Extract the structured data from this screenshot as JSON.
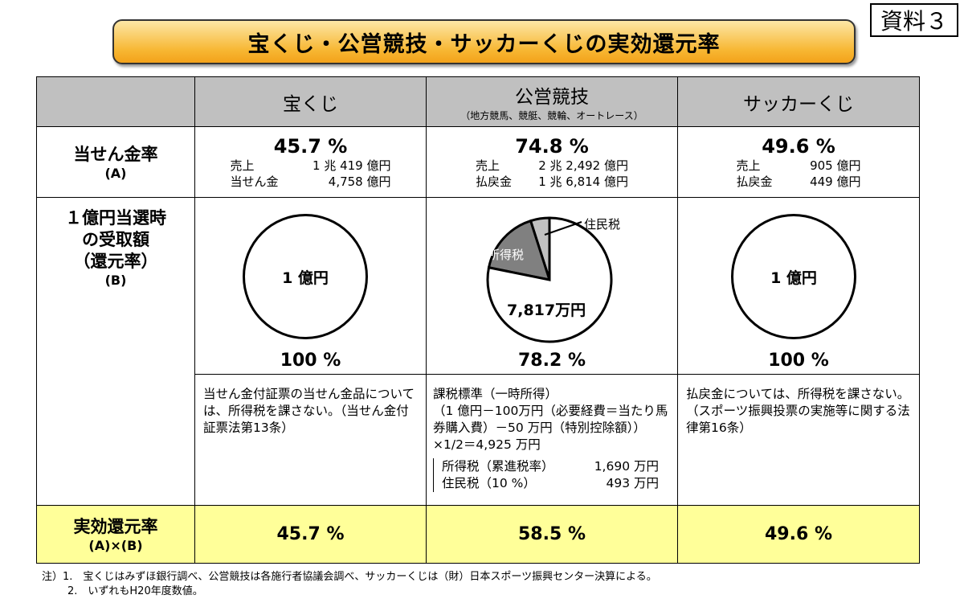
{
  "title": "宝くじ・公営競技・サッカーくじの実効還元率",
  "doc_label": "資料３",
  "columns": [
    {
      "name": "宝くじ",
      "sub": ""
    },
    {
      "name": "公営競技",
      "sub": "（地方競馬、競艇、競輪、オートレース）"
    },
    {
      "name": "サッカーくじ",
      "sub": ""
    }
  ],
  "rows": {
    "payout_label": "当せん金率",
    "payout_sub": "(A)",
    "return_label_1": "１億円当選時",
    "return_label_2": "の受取額",
    "return_label_3": "（還元率）",
    "return_sub": "(B)",
    "effective_label": "実効還元率",
    "effective_sub": "(A)×(B)"
  },
  "takarakuji": {
    "rate": "45.7 %",
    "l1k": "売上",
    "l1v": "1 兆 419 億円",
    "l2k": "当せん金",
    "l2v": "4,758 億円",
    "circle": "1 億円",
    "ret": "100 %",
    "note": "当せん金付証票の当せん金品については、所得税を課さない。（当せん金付証票法第13条）",
    "effective": "45.7 %"
  },
  "keiba": {
    "rate": "74.8 %",
    "l1k": "売上",
    "l1v": "2 兆 2,492 億円",
    "l2k": "払戻金",
    "l2v": "1 兆 6,814 億円",
    "ret": "78.2 %",
    "note_title": "課税標準（一時所得）",
    "note_body": "（1 億円－100万円（必要経費＝当たり馬券購入費）－50 万円（特別控除額））×1/2＝4,925 万円",
    "tax1k": "所得税（累進税率）",
    "tax1v": "1,690 万円",
    "tax2k": "住民税（10 %）",
    "tax2v": "493 万円",
    "effective": "58.5 %"
  },
  "soccer": {
    "rate": "49.6 %",
    "l1k": "売上",
    "l1v": "905 億円",
    "l2k": "払戻金",
    "l2v": "449 億円",
    "circle": "1 億円",
    "ret": "100 %",
    "note": "払戻金については、所得税を課さない。（スポーツ振興投票の実施等に関する法律第16条）",
    "effective": "49.6 %"
  },
  "chart_data": {
    "type": "pie",
    "unit": "万円",
    "slices": [
      {
        "label": "住民税",
        "value": 493,
        "color": "#c0c0c0"
      },
      {
        "label": "所得税",
        "value": 1690,
        "color": "#808080"
      },
      {
        "label": "7,817万円",
        "value": 7817,
        "color": "#ffffff"
      }
    ]
  },
  "footnotes": [
    "注）1.　宝くじはみずほ銀行調べ、公営競技は各施行者協議会調べ、サッカーくじは（財）日本スポーツ振興センター決算による。",
    "2.　いずれもH20年度数値。"
  ]
}
